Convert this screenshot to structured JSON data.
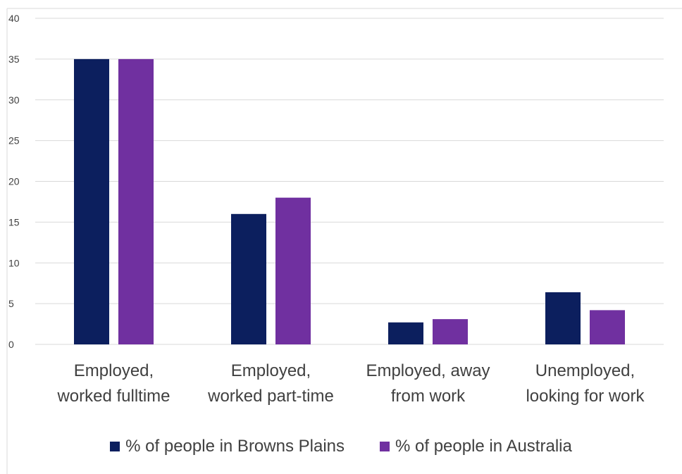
{
  "chart_data": {
    "type": "bar",
    "categories": [
      [
        "Employed,",
        "worked fulltime"
      ],
      [
        "Employed,",
        "worked part-time"
      ],
      [
        "Employed, away",
        "from work"
      ],
      [
        "Unemployed,",
        "looking for work"
      ]
    ],
    "series": [
      {
        "name": "% of people in Browns Plains",
        "values": [
          35,
          16,
          2.7,
          6.4
        ],
        "color": "#0c1f5e"
      },
      {
        "name": "% of people in Australia",
        "values": [
          35,
          18,
          3.1,
          4.2
        ],
        "color": "#7030a0"
      }
    ],
    "ylim": [
      0,
      40
    ],
    "yticks": [
      0,
      5,
      10,
      15,
      20,
      25,
      30,
      35,
      40
    ],
    "grid": true,
    "legend": "bottom",
    "title": "",
    "xlabel": "",
    "ylabel": ""
  }
}
